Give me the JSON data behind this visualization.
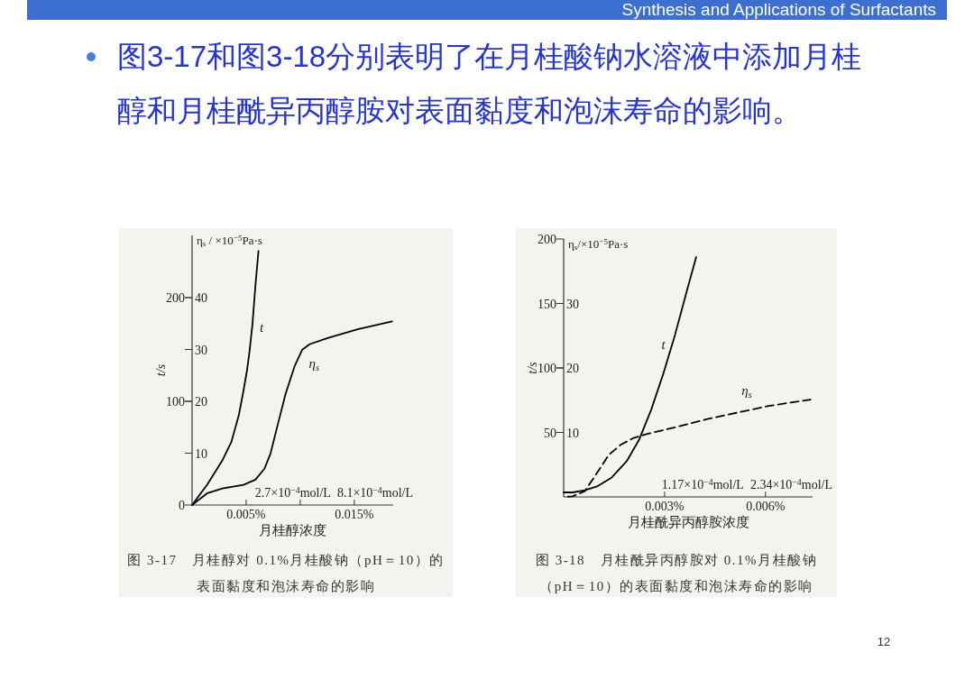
{
  "chart_data": [
    {
      "type": "other",
      "title": "图3-17和图3-18分别表明了在月桂酸钠水溶液中添加月桂醇和月桂酰异丙醇胺对表面黏度和泡沫寿命的影响。",
      "annotations": [
        "Synthesis and Applications of Surfactants",
        "12"
      ]
    },
    {
      "type": "line",
      "xlabel": "月桂醇浓度",
      "ylabel": "η$_{s}$ / ×10$^{−5}$Pa·s",
      "y2label": "t/s",
      "xlim": [
        0,
        0.0186
      ],
      "xticks": [
        {
          "value": 0.005,
          "label": "0.005%"
        },
        {
          "value": 0.01,
          "label": null
        },
        {
          "value": 0.015,
          "label": "0.015%"
        }
      ],
      "ylim": [
        0,
        52
      ],
      "yticks": [
        10,
        20,
        30,
        40
      ],
      "y2lim": [
        0,
        260
      ],
      "y2ticks": [
        0,
        100,
        200
      ],
      "series": [
        {
          "name": "t",
          "color": "#000000",
          "axis": "y2",
          "line_style": "solid",
          "x": [
            0,
            0.00142,
            0.0028,
            0.00364,
            0.00433,
            0.00475,
            0.00508,
            0.00531,
            0.00558,
            0.00586,
            0.00614
          ],
          "values": [
            0,
            20,
            43,
            61,
            87,
            110,
            130,
            148,
            174,
            212,
            245
          ]
        },
        {
          "name": "η$_{s}$",
          "color": "#000000",
          "line_style": "solid",
          "x": [
            0,
            0.00142,
            0.0028,
            0.00475,
            0.00586,
            0.00669,
            0.00725,
            0.0078,
            0.00864,
            0.00947,
            0.01017,
            0.01086,
            0.01253,
            0.01531,
            0.0185
          ],
          "values": [
            0,
            2.3,
            3.2,
            3.9,
            4.9,
            7.0,
            9.9,
            14.5,
            21.4,
            26.7,
            29.9,
            31.0,
            32.2,
            33.9,
            35.4
          ]
        }
      ],
      "annotations": [
        "2.7×10$^{−4}$mol/L",
        "8.1×10$^{−4}$mol/L",
        "图 3-17　月桂醇对 0.1%月桂酸钠（pH＝10）的表面黏度和泡沫寿命的影响"
      ]
    },
    {
      "type": "line",
      "xlabel": "月桂酰异丙醇胺浓度",
      "ylabel": "η$_{s}$/×10$^{−5}$Pa·s",
      "y2label": "t/s",
      "xlim": [
        0,
        0.0074
      ],
      "xticks": [
        {
          "value": 0.003,
          "label": "0.003%"
        },
        {
          "value": 0.006,
          "label": "0.006%"
        }
      ],
      "ylim": [
        0,
        40
      ],
      "yticks": [
        10,
        20,
        30
      ],
      "y2lim": [
        0,
        200
      ],
      "y2ticks": [
        50,
        100,
        150,
        200
      ],
      "series": [
        {
          "name": "t",
          "color": "#000000",
          "axis": "y2",
          "line_style": "solid",
          "x": [
            0,
            0.00027,
            0.00063,
            0.00099,
            0.00143,
            0.00188,
            0.00224,
            0.0026,
            0.00296,
            0.00331,
            0.00367,
            0.00394
          ],
          "values": [
            3.5,
            3.5,
            5.1,
            8.1,
            15.1,
            27.9,
            44.2,
            67.4,
            95.3,
            125.6,
            160.5,
            186
          ]
        },
        {
          "name": "η$_{s}$",
          "color": "#000000",
          "line_style": "dashed",
          "x": [
            0,
            0.00027,
            0.00063,
            0.00099,
            0.00134,
            0.0017,
            0.00206,
            0.00251,
            0.0034,
            0.0043,
            0.00519,
            0.00609,
            0.00734
          ],
          "values": [
            0,
            0.1,
            0.9,
            3.7,
            6.5,
            8.1,
            9.1,
            9.8,
            10.9,
            12.1,
            13.1,
            14.1,
            15.1
          ]
        }
      ],
      "annotations": [
        "1.17×10$^{−4}$mol/L",
        "2.34×10$^{−4}$mol/L",
        "图 3-18　月桂酰异丙醇胺对 0.1%月桂酸钠（pH＝10）的表面黏度和泡沫寿命的影响"
      ]
    }
  ]
}
